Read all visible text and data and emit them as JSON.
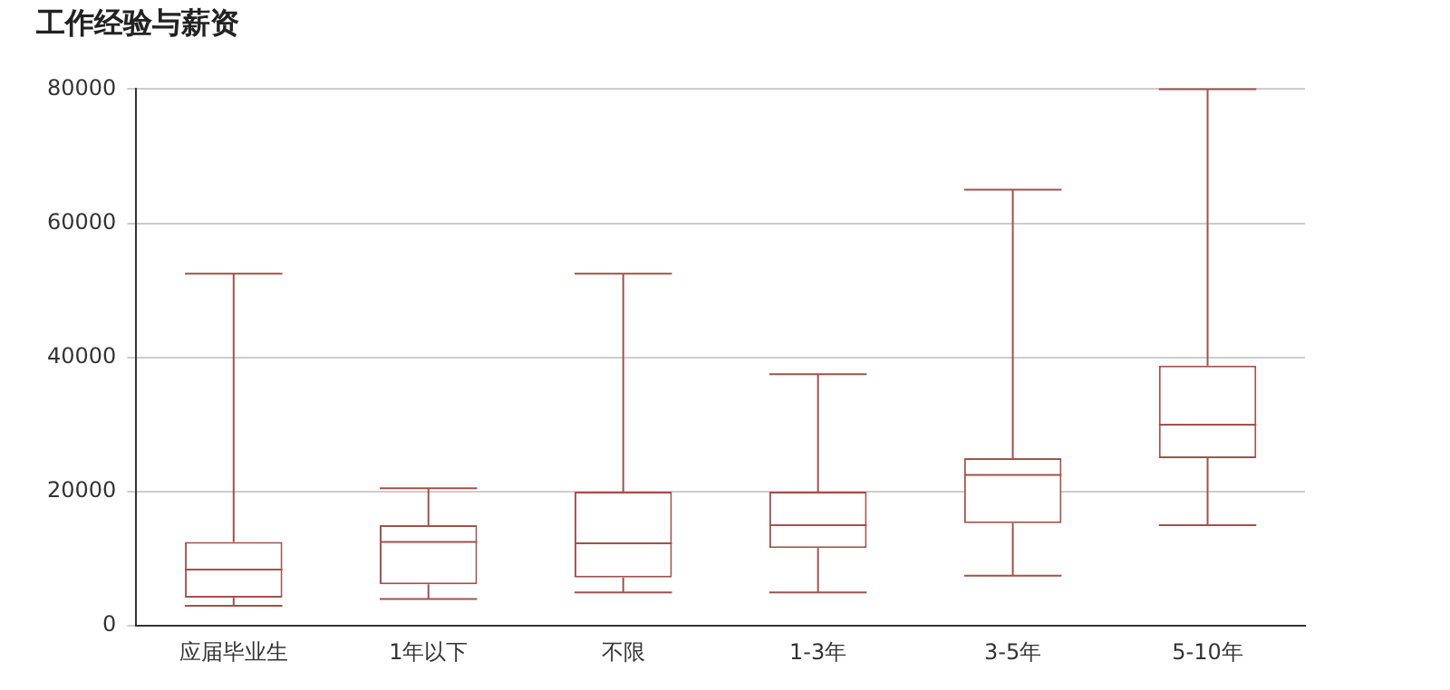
{
  "chart_data": {
    "type": "box",
    "title": "工作经验与薪资",
    "categories": [
      "应届毕业生",
      "1年以下",
      "不限",
      "1-3年",
      "3-5年",
      "5-10年"
    ],
    "boxes": [
      {
        "low": 3000,
        "q1": 4200,
        "median": 8400,
        "q3": 12500,
        "high": 52500
      },
      {
        "low": 4000,
        "q1": 6200,
        "median": 12500,
        "q3": 15000,
        "high": 20500
      },
      {
        "low": 5000,
        "q1": 7200,
        "median": 12300,
        "q3": 20000,
        "high": 52500
      },
      {
        "low": 5000,
        "q1": 11600,
        "median": 15000,
        "q3": 20000,
        "high": 37500
      },
      {
        "low": 7500,
        "q1": 15300,
        "median": 22500,
        "q3": 25000,
        "high": 65000
      },
      {
        "low": 15000,
        "q1": 25000,
        "median": 30000,
        "q3": 38800,
        "high": 80000
      }
    ],
    "color": "#a0524b",
    "ylim": [
      0,
      80000
    ],
    "yticks": [
      0,
      20000,
      40000,
      60000,
      80000
    ],
    "grid": "y"
  }
}
